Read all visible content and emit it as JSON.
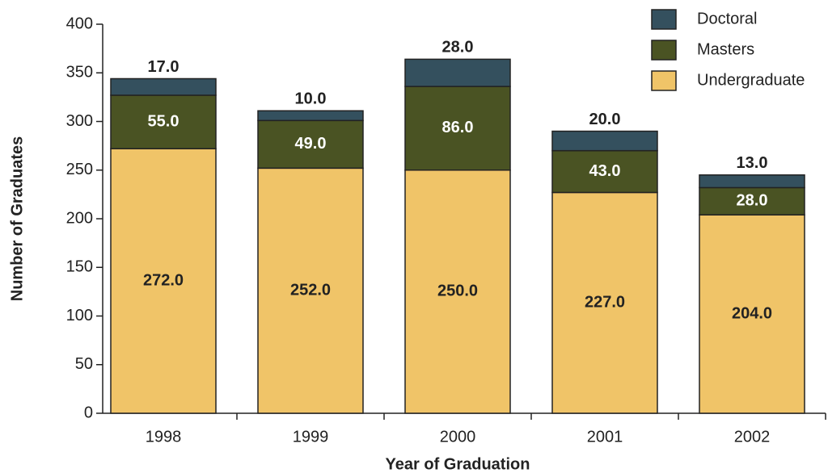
{
  "chart_data": {
    "type": "stacked_bar",
    "categories": [
      "1998",
      "1999",
      "2000",
      "2001",
      "2002"
    ],
    "series": [
      {
        "name": "Undergraduate",
        "color": "#f0c468",
        "values": [
          272,
          252,
          250,
          227,
          204
        ],
        "value_labels": [
          "272.0",
          "252.0",
          "250.0",
          "227.0",
          "204.0"
        ]
      },
      {
        "name": "Masters",
        "color": "#4a5323",
        "values": [
          55,
          49,
          86,
          43,
          28
        ],
        "value_labels": [
          "55.0",
          "49.0",
          "86.0",
          "43.0",
          "28.0"
        ]
      },
      {
        "name": "Doctoral",
        "color": "#34505e",
        "values": [
          17,
          10,
          28,
          20,
          13
        ],
        "value_labels": [
          "17.0",
          "10.0",
          "28.0",
          "20.0",
          "13.0"
        ]
      }
    ],
    "xlabel": "Year of Graduation",
    "ylabel": "Number of Graduates",
    "ylim": [
      0,
      400
    ],
    "yticks": [
      0,
      50,
      100,
      150,
      200,
      250,
      300,
      350,
      400
    ],
    "grid": false,
    "legend": "upper right"
  }
}
